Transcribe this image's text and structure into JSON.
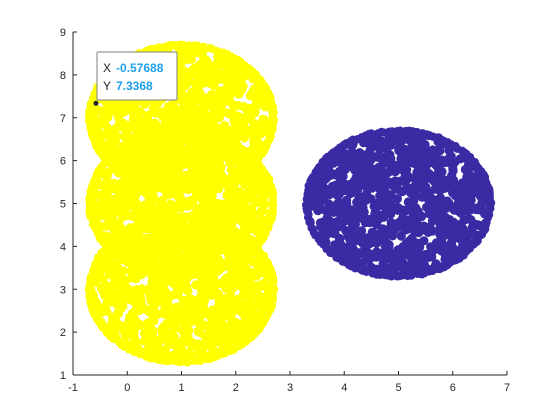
{
  "chart_data": {
    "type": "scatter",
    "title": "",
    "xlabel": "",
    "ylabel": "",
    "xlim": [
      -1,
      7
    ],
    "ylim": [
      1,
      9
    ],
    "xticks": [
      "-1",
      "0",
      "1",
      "2",
      "3",
      "4",
      "5",
      "6",
      "7"
    ],
    "yticks": [
      "1",
      "2",
      "3",
      "4",
      "5",
      "6",
      "7",
      "8",
      "9"
    ],
    "grid": false,
    "series": [
      {
        "color": "#ffff00",
        "clusters": [
          {
            "cx": 1.0,
            "cy": 7.0,
            "r": 1.7
          },
          {
            "cx": 1.0,
            "cy": 5.0,
            "r": 1.7
          },
          {
            "cx": 1.0,
            "cy": 3.0,
            "r": 1.7
          }
        ]
      },
      {
        "color": "#3a2aa3",
        "clusters": [
          {
            "cx": 5.0,
            "cy": 5.0,
            "r": 1.7
          }
        ]
      }
    ],
    "datatip": {
      "x_label": "X",
      "x_value": "-0.57688",
      "y_label": "Y",
      "y_value": "7.3368",
      "point": [
        -0.57688,
        7.3368
      ],
      "value_color": "#1ea0ea"
    }
  }
}
